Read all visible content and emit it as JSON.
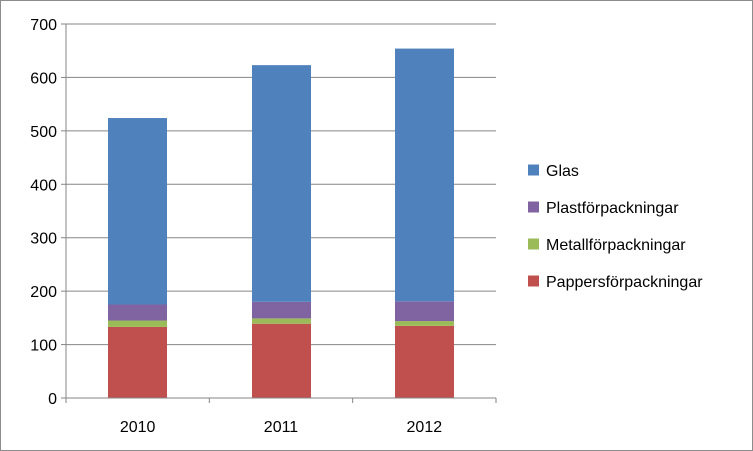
{
  "chart_data": {
    "type": "bar",
    "stacked": true,
    "title": "",
    "xlabel": "",
    "ylabel": "",
    "categories": [
      "2010",
      "2011",
      "2012"
    ],
    "ylim": [
      0,
      700
    ],
    "yticks": [
      0,
      100,
      200,
      300,
      400,
      500,
      600,
      700
    ],
    "grid": "horizontal",
    "legend_position": "right",
    "series": [
      {
        "name": "Pappersförpackningar",
        "color": "#c0504d",
        "values": [
          133,
          139,
          135
        ]
      },
      {
        "name": "Metallförpackningar",
        "color": "#9bbb59",
        "values": [
          12,
          10,
          9
        ]
      },
      {
        "name": "Plastförpackningar",
        "color": "#8064a2",
        "values": [
          30,
          31,
          37
        ]
      },
      {
        "name": "Glas",
        "color": "#4f81bd",
        "values": [
          349,
          443,
          473
        ]
      }
    ],
    "legend_order": [
      "Glas",
      "Plastförpackningar",
      "Metallförpackningar",
      "Pappersförpackningar"
    ]
  }
}
